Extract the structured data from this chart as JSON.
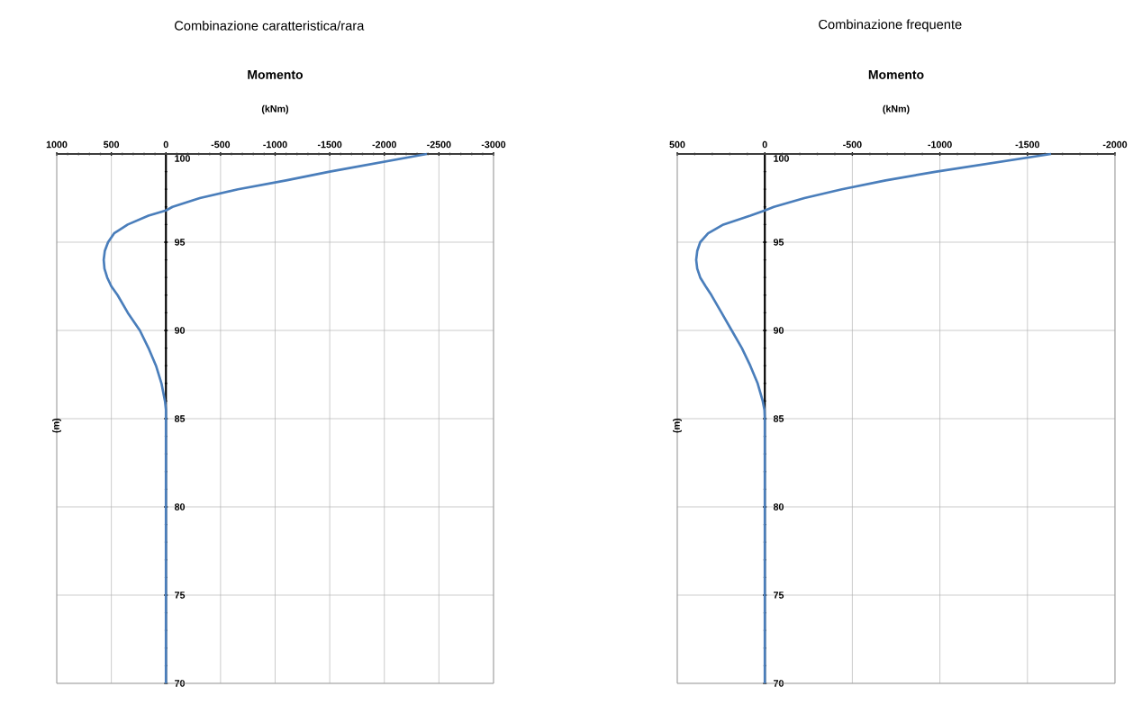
{
  "chart_data": [
    {
      "type": "line",
      "title": "Combinazione caratteristica/rara",
      "subtitle": "Momento",
      "xlabel": "(kNm)",
      "ylabel": "(m)",
      "xlim": [
        1000,
        -3000
      ],
      "xticks": [
        1000,
        500,
        0,
        -500,
        -1000,
        -1500,
        -2000,
        -2500,
        -3000
      ],
      "ylim": [
        70,
        100
      ],
      "yticks": [
        70,
        75,
        80,
        85,
        90,
        95,
        100
      ],
      "grid": true,
      "series": [
        {
          "color": "#4a7ebb",
          "x": [
            -2390,
            -1500,
            -1100,
            -660,
            -310,
            -60,
            0,
            160,
            350,
            475,
            530,
            560,
            570,
            563,
            538,
            500,
            443,
            349,
            239,
            160,
            91,
            41,
            9,
            0,
            0
          ],
          "values": [
            100,
            99,
            98.5,
            98,
            97.5,
            97,
            96.8,
            96.5,
            96,
            95.5,
            95,
            94.5,
            94,
            93.5,
            93,
            92.5,
            92,
            91,
            90,
            89,
            88,
            87,
            86,
            85.5,
            70
          ]
        }
      ]
    },
    {
      "type": "line",
      "title": "Combinazione frequente",
      "subtitle": "Momento",
      "xlabel": "(kNm)",
      "ylabel": "(m)",
      "xlim": [
        500,
        -2000
      ],
      "xticks": [
        500,
        0,
        -500,
        -1000,
        -1500,
        -2000
      ],
      "ylim": [
        70,
        100
      ],
      "yticks": [
        70,
        75,
        80,
        85,
        90,
        95,
        100
      ],
      "grid": true,
      "series": [
        {
          "color": "#4a7ebb",
          "x": [
            -1635,
            -980,
            -690,
            -440,
            -226,
            -52,
            0,
            83,
            237,
            324,
            369,
            386,
            392,
            386,
            369,
            338,
            305,
            247,
            189,
            131,
            83,
            41,
            12,
            2,
            0,
            0
          ],
          "values": [
            100,
            99,
            98.5,
            98,
            97.5,
            97,
            96.8,
            96.5,
            96,
            95.5,
            95,
            94.5,
            94,
            93.5,
            93,
            92.5,
            92,
            91,
            90,
            89,
            88,
            87,
            86,
            85.5,
            85,
            70
          ]
        }
      ]
    }
  ]
}
